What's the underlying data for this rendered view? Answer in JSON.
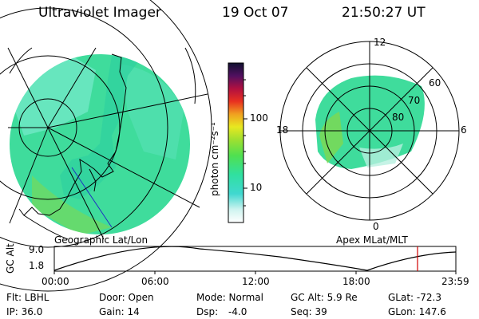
{
  "header": {
    "instrument": "Ultraviolet Imager",
    "date": "19 Oct 07",
    "time": "21:50:27 UT"
  },
  "colorbar": {
    "label": "photon cm⁻²s⁻¹",
    "ticks": [
      "100",
      "10"
    ]
  },
  "left_map": {
    "caption": "Geographic Lat/Lon"
  },
  "polar_plot": {
    "caption": "Apex MLat/MLT",
    "mlt_labels": [
      "12",
      "18",
      "6",
      "0"
    ],
    "mlat_labels": [
      "60",
      "70",
      "80"
    ]
  },
  "altitude_plot": {
    "ylabel": "GC Alt",
    "yticks": [
      "9.0",
      "1.8"
    ],
    "xticks": [
      "00:00",
      "06:00",
      "12:00",
      "18:00",
      "23:59"
    ],
    "marker_time": "21:50"
  },
  "info": {
    "filter": "Flt: LBHL",
    "ip": "IP: 36.0",
    "door": "Door: Open",
    "gain": "Gain: 14",
    "mode": "Mode: Normal",
    "dsp_label": "Dsp:",
    "dsp_value": "-4.0",
    "gc_alt": "GC Alt: 5.9 Re",
    "seq": "Seq: 39",
    "glat": "GLat: -72.3",
    "glon": "GLon: 147.6"
  },
  "colors": {
    "emission_main": "#3fdc9c",
    "emission_light": "#6fe8c4",
    "emission_green": "#7fd850",
    "marker": "#d00000",
    "coast_blue": "#2030c0"
  }
}
